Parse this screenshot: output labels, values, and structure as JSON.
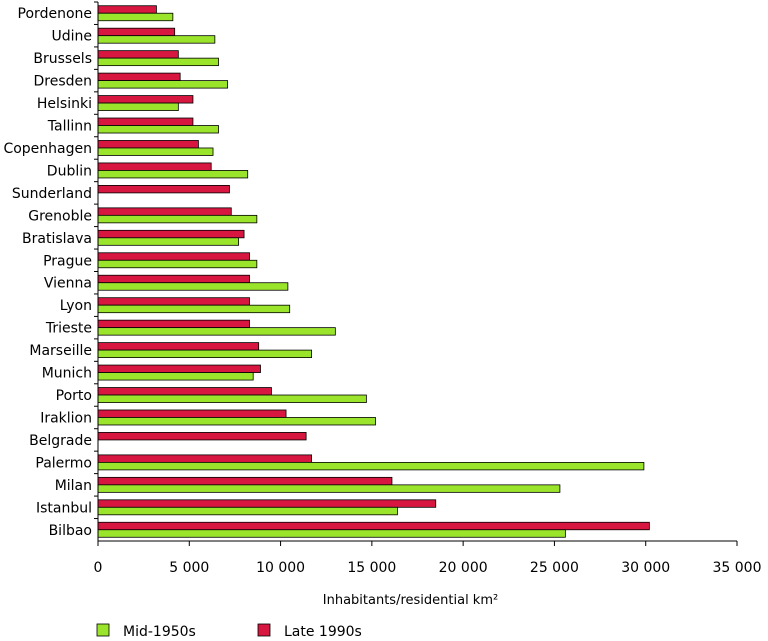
{
  "chart_data": {
    "type": "bar",
    "orientation": "horizontal",
    "categories": [
      "Pordenone",
      "Udine",
      "Brussels",
      "Dresden",
      "Helsinki",
      "Tallinn",
      "Copenhagen",
      "Dublin",
      "Sunderland",
      "Grenoble",
      "Bratislava",
      "Prague",
      "Vienna",
      "Lyon",
      "Trieste",
      "Marseille",
      "Munich",
      "Porto",
      "Iraklion",
      "Belgrade",
      "Palermo",
      "Milan",
      "Istanbul",
      "Bilbao"
    ],
    "series": [
      {
        "name": "Late 1990s",
        "color": "#d7173f",
        "values": [
          3200,
          4200,
          4400,
          4500,
          5200,
          5200,
          5500,
          6200,
          7200,
          7300,
          8000,
          8300,
          8300,
          8300,
          8300,
          8800,
          8900,
          9500,
          10300,
          11400,
          11700,
          16100,
          18500,
          30200
        ]
      },
      {
        "name": "Mid-1950s",
        "color": "#9ae52c",
        "values": [
          4100,
          6400,
          6600,
          7100,
          4400,
          6600,
          6300,
          8200,
          null,
          8700,
          7700,
          8700,
          10400,
          10500,
          13000,
          11700,
          8500,
          14700,
          15200,
          null,
          29900,
          25300,
          16400,
          25600
        ]
      }
    ],
    "xlabel": "Inhabitants/residential km²",
    "ylabel": "",
    "xlim": [
      0,
      35000
    ],
    "xticks": [
      0,
      5000,
      10000,
      15000,
      20000,
      25000,
      30000,
      35000
    ],
    "xtick_labels": [
      "0",
      "5 000",
      "10 000",
      "15 000",
      "20 000",
      "25 000",
      "30 000",
      "35 000"
    ],
    "grid": false,
    "legend": {
      "position": "bottom-left",
      "items": [
        {
          "label": "Mid-1950s",
          "color": "#9ae52c"
        },
        {
          "label": "Late 1990s",
          "color": "#d7173f"
        }
      ]
    }
  }
}
